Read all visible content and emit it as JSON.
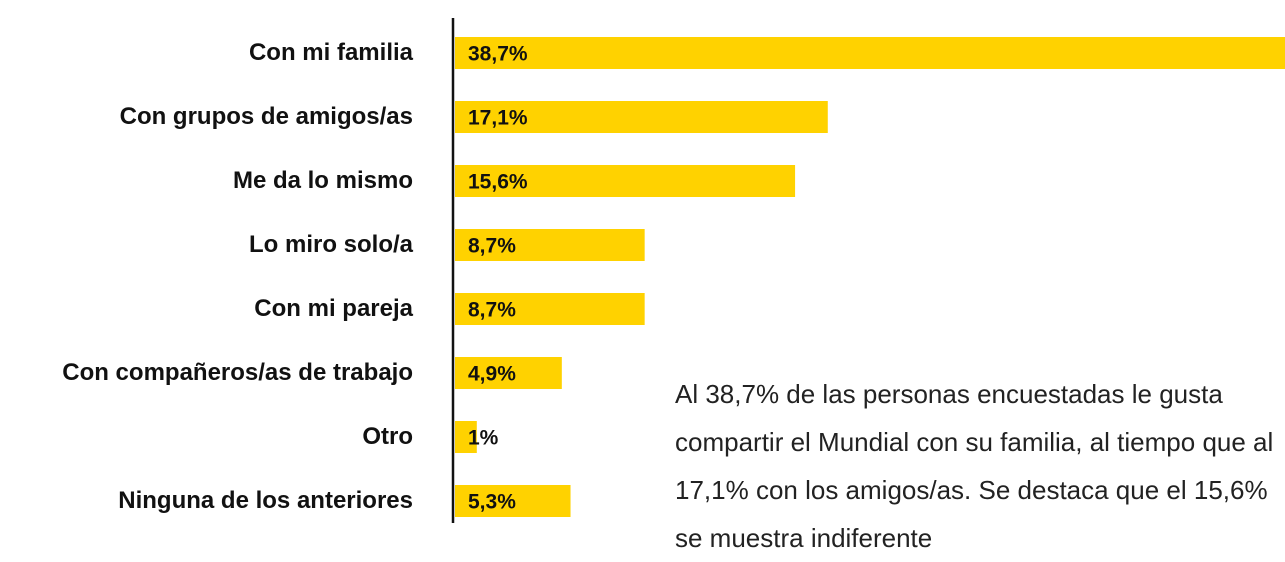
{
  "chart_data": {
    "type": "bar",
    "orientation": "horizontal",
    "categories": [
      "Con mi familia",
      "Con grupos de amigos/as",
      "Me da lo mismo",
      "Lo miro solo/a",
      "Con mi pareja",
      "Con compañeros/as de trabajo",
      "Otro",
      "Ninguna de los anteriores"
    ],
    "values": [
      38.7,
      17.1,
      15.6,
      8.7,
      8.7,
      4.9,
      1,
      5.3
    ],
    "value_labels": [
      "38,7%",
      "17,1%",
      "15,6%",
      "8,7%",
      "8,7%",
      "4,9%",
      "1%",
      "5,3%"
    ],
    "color": "#ffd200",
    "xlim": [
      0,
      40
    ],
    "annotation": "Al 38,7% de las personas encuestadas le gusta compartir el Mundial con su familia, al tiempo que al 17,1% con los amigos/as. Se destaca que el 15,6% se muestra indiferente"
  }
}
